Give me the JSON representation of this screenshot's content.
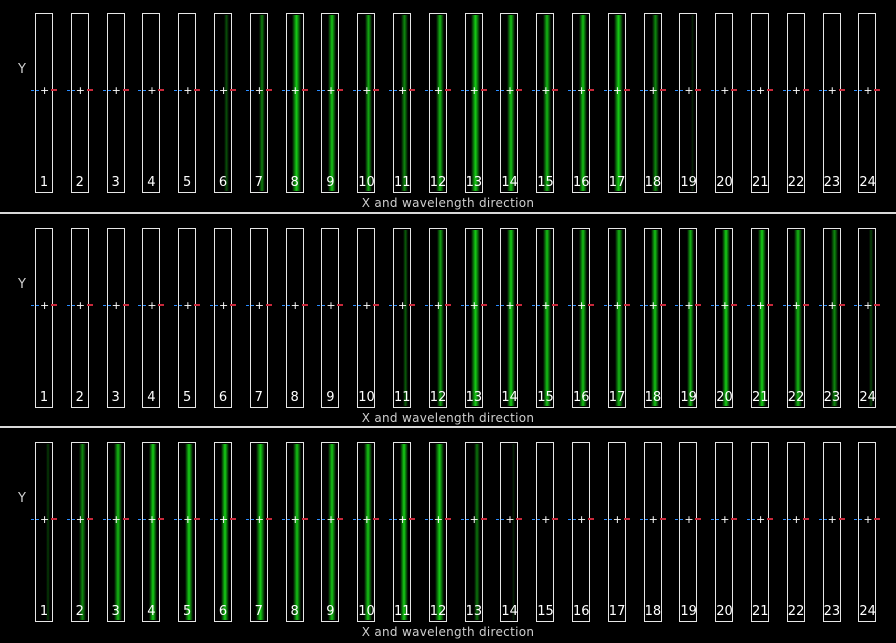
{
  "panels": [
    {
      "ylabel": "Y",
      "xlabel": "X and wavelength direction",
      "intensity": [
        0,
        0,
        0,
        0,
        0,
        0.35,
        0.55,
        0.9,
        0.85,
        0.75,
        0.6,
        0.8,
        0.9,
        0.85,
        0.8,
        0.85,
        0.9,
        0.6,
        0.15,
        0,
        0,
        0,
        0,
        0
      ]
    },
    {
      "ylabel": "Y",
      "xlabel": "X and wavelength direction",
      "intensity": [
        0,
        0,
        0,
        0,
        0,
        0,
        0,
        0,
        0,
        0,
        0.4,
        0.7,
        0.9,
        0.9,
        0.85,
        0.85,
        0.8,
        0.85,
        0.8,
        0.9,
        0.9,
        0.8,
        0.6,
        0.3
      ]
    },
    {
      "ylabel": "Y",
      "xlabel": "X and wavelength direction",
      "intensity": [
        0.25,
        0.6,
        0.8,
        0.9,
        0.9,
        0.9,
        0.9,
        0.85,
        0.85,
        0.85,
        0.9,
        0.9,
        0.5,
        0.15,
        0,
        0,
        0,
        0,
        0,
        0,
        0,
        0,
        0,
        0
      ]
    }
  ],
  "slit_numbers": [
    "1",
    "2",
    "3",
    "4",
    "5",
    "6",
    "7",
    "8",
    "9",
    "10",
    "11",
    "12",
    "13",
    "14",
    "15",
    "16",
    "17",
    "18",
    "19",
    "20",
    "21",
    "22",
    "23",
    "24"
  ],
  "colors": {
    "trace": "#18e818",
    "center_cross": "#ffffff",
    "left_marker": "#2a8cff",
    "right_marker": "#c8283a"
  }
}
